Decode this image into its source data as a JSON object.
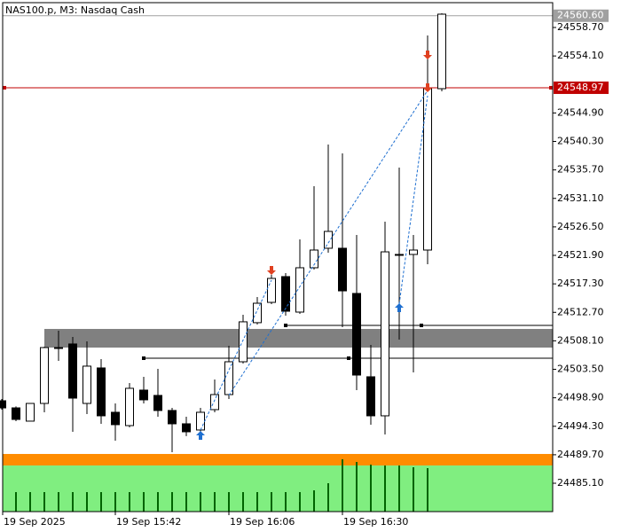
{
  "chart_data": {
    "type": "candlestick",
    "title": "NAS100.p, M3:  Nasdaq Cash",
    "categories": [
      "19 Sep 2025",
      null,
      null,
      null,
      null,
      null,
      null,
      null,
      "19 Sep 15:42",
      null,
      null,
      null,
      null,
      null,
      null,
      null,
      "19 Sep 16:06",
      null,
      null,
      null,
      null,
      null,
      null,
      null,
      "19 Sep 16:30",
      null,
      null,
      null,
      null,
      null,
      null,
      null
    ],
    "open": [
      24498.42,
      24497.27,
      24495.13,
      24497.99,
      24507.01,
      24507.59,
      24497.99,
      24503.72,
      24496.56,
      24494.41,
      24500.14,
      24499.28,
      24496.85,
      24494.7,
      24493.7,
      24496.99,
      24499.42,
      24504.72,
      24511.03,
      24514.31,
      24518.47,
      24512.74,
      24519.9,
      24523.05,
      24523.05,
      24515.75,
      24502.29,
      24495.99,
      24522.05,
      24522.05,
      24522.76,
      24548.82
    ],
    "high": [
      24498.71,
      24497.5,
      24497.99,
      24507.15,
      24509.73,
      24508.73,
      24508.01,
      24505.15,
      24497.99,
      24501.28,
      24502.29,
      24503.58,
      24497.27,
      24495.84,
      24497.27,
      24501.86,
      24507.3,
      24512.31,
      24515.17,
      24518.75,
      24519.04,
      24524.48,
      24533.07,
      24539.8,
      24538.37,
      24525.2,
      24507.44,
      24527.34,
      24536.08,
      24525.2,
      24557.41,
      24560.99
    ],
    "low": [
      24496.99,
      24495.13,
      24495.13,
      24496.56,
      24504.87,
      24493.41,
      24496.27,
      24494.7,
      24491.98,
      24494.13,
      24497.99,
      24495.84,
      24490.12,
      24492.7,
      24492.55,
      24496.56,
      24498.71,
      24504.43,
      24510.74,
      24514.03,
      24512.17,
      24512.45,
      24519.61,
      24522.33,
      24510.31,
      24500.14,
      24494.56,
      24492.98,
      24508.3,
      24503.0,
      24520.47,
      24548.39
    ],
    "close": [
      24497.27,
      24495.41,
      24497.99,
      24507.01,
      24506.87,
      24498.85,
      24504.01,
      24495.99,
      24494.56,
      24500.43,
      24498.57,
      24496.85,
      24494.7,
      24493.41,
      24496.56,
      24499.42,
      24504.72,
      24511.17,
      24514.17,
      24518.18,
      24512.88,
      24519.9,
      24522.76,
      24525.77,
      24516.17,
      24502.57,
      24495.99,
      24522.47,
      24522.05,
      24522.76,
      24548.82,
      24560.85
    ],
    "volumes": [
      0,
      22,
      22,
      22,
      22,
      22,
      22,
      22,
      22,
      22,
      22,
      22,
      22,
      22,
      22,
      22,
      22,
      22,
      22,
      22,
      22,
      22,
      24,
      32,
      59,
      56,
      53,
      52,
      52,
      50,
      49,
      0
    ],
    "up_color": "#ffffff",
    "down_color": "#000000",
    "volume_color": "#006400",
    "ylim": [
      24480.52,
      24562.71
    ],
    "yticks": [
      {
        "value": 24558.7,
        "label": "24558.70"
      },
      {
        "value": 24554.1,
        "label": "24554.10"
      },
      {
        "value": 24544.9,
        "label": "24544.90"
      },
      {
        "value": 24540.3,
        "label": "24540.30"
      },
      {
        "value": 24535.7,
        "label": "24535.70"
      },
      {
        "value": 24531.1,
        "label": "24531.10"
      },
      {
        "value": 24526.5,
        "label": "24526.50"
      },
      {
        "value": 24521.9,
        "label": "24521.90"
      },
      {
        "value": 24517.3,
        "label": "24517.30"
      },
      {
        "value": 24512.7,
        "label": "24512.70"
      },
      {
        "value": 24508.1,
        "label": "24508.10"
      },
      {
        "value": 24503.5,
        "label": "24503.50"
      },
      {
        "value": 24498.9,
        "label": "24498.90"
      },
      {
        "value": 24494.3,
        "label": "24494.30"
      },
      {
        "value": 24489.7,
        "label": "24489.70"
      },
      {
        "value": 24485.1,
        "label": "24485.10"
      }
    ],
    "last_price": {
      "value": 24560.6,
      "label": "24560.60",
      "color": "#a0a0a0"
    },
    "bid": {
      "value": 24548.97,
      "color": "#c00000"
    },
    "zones": [
      {
        "from": 24507.01,
        "to": 24510.02,
        "color": "#808080"
      },
      {
        "from": 24487.97,
        "to": 24489.83,
        "color": "#ff8c00"
      },
      {
        "from": 24480.52,
        "to": 24487.97,
        "color": "#80ee80"
      }
    ],
    "levels": [
      24505.29,
      24510.59
    ]
  }
}
